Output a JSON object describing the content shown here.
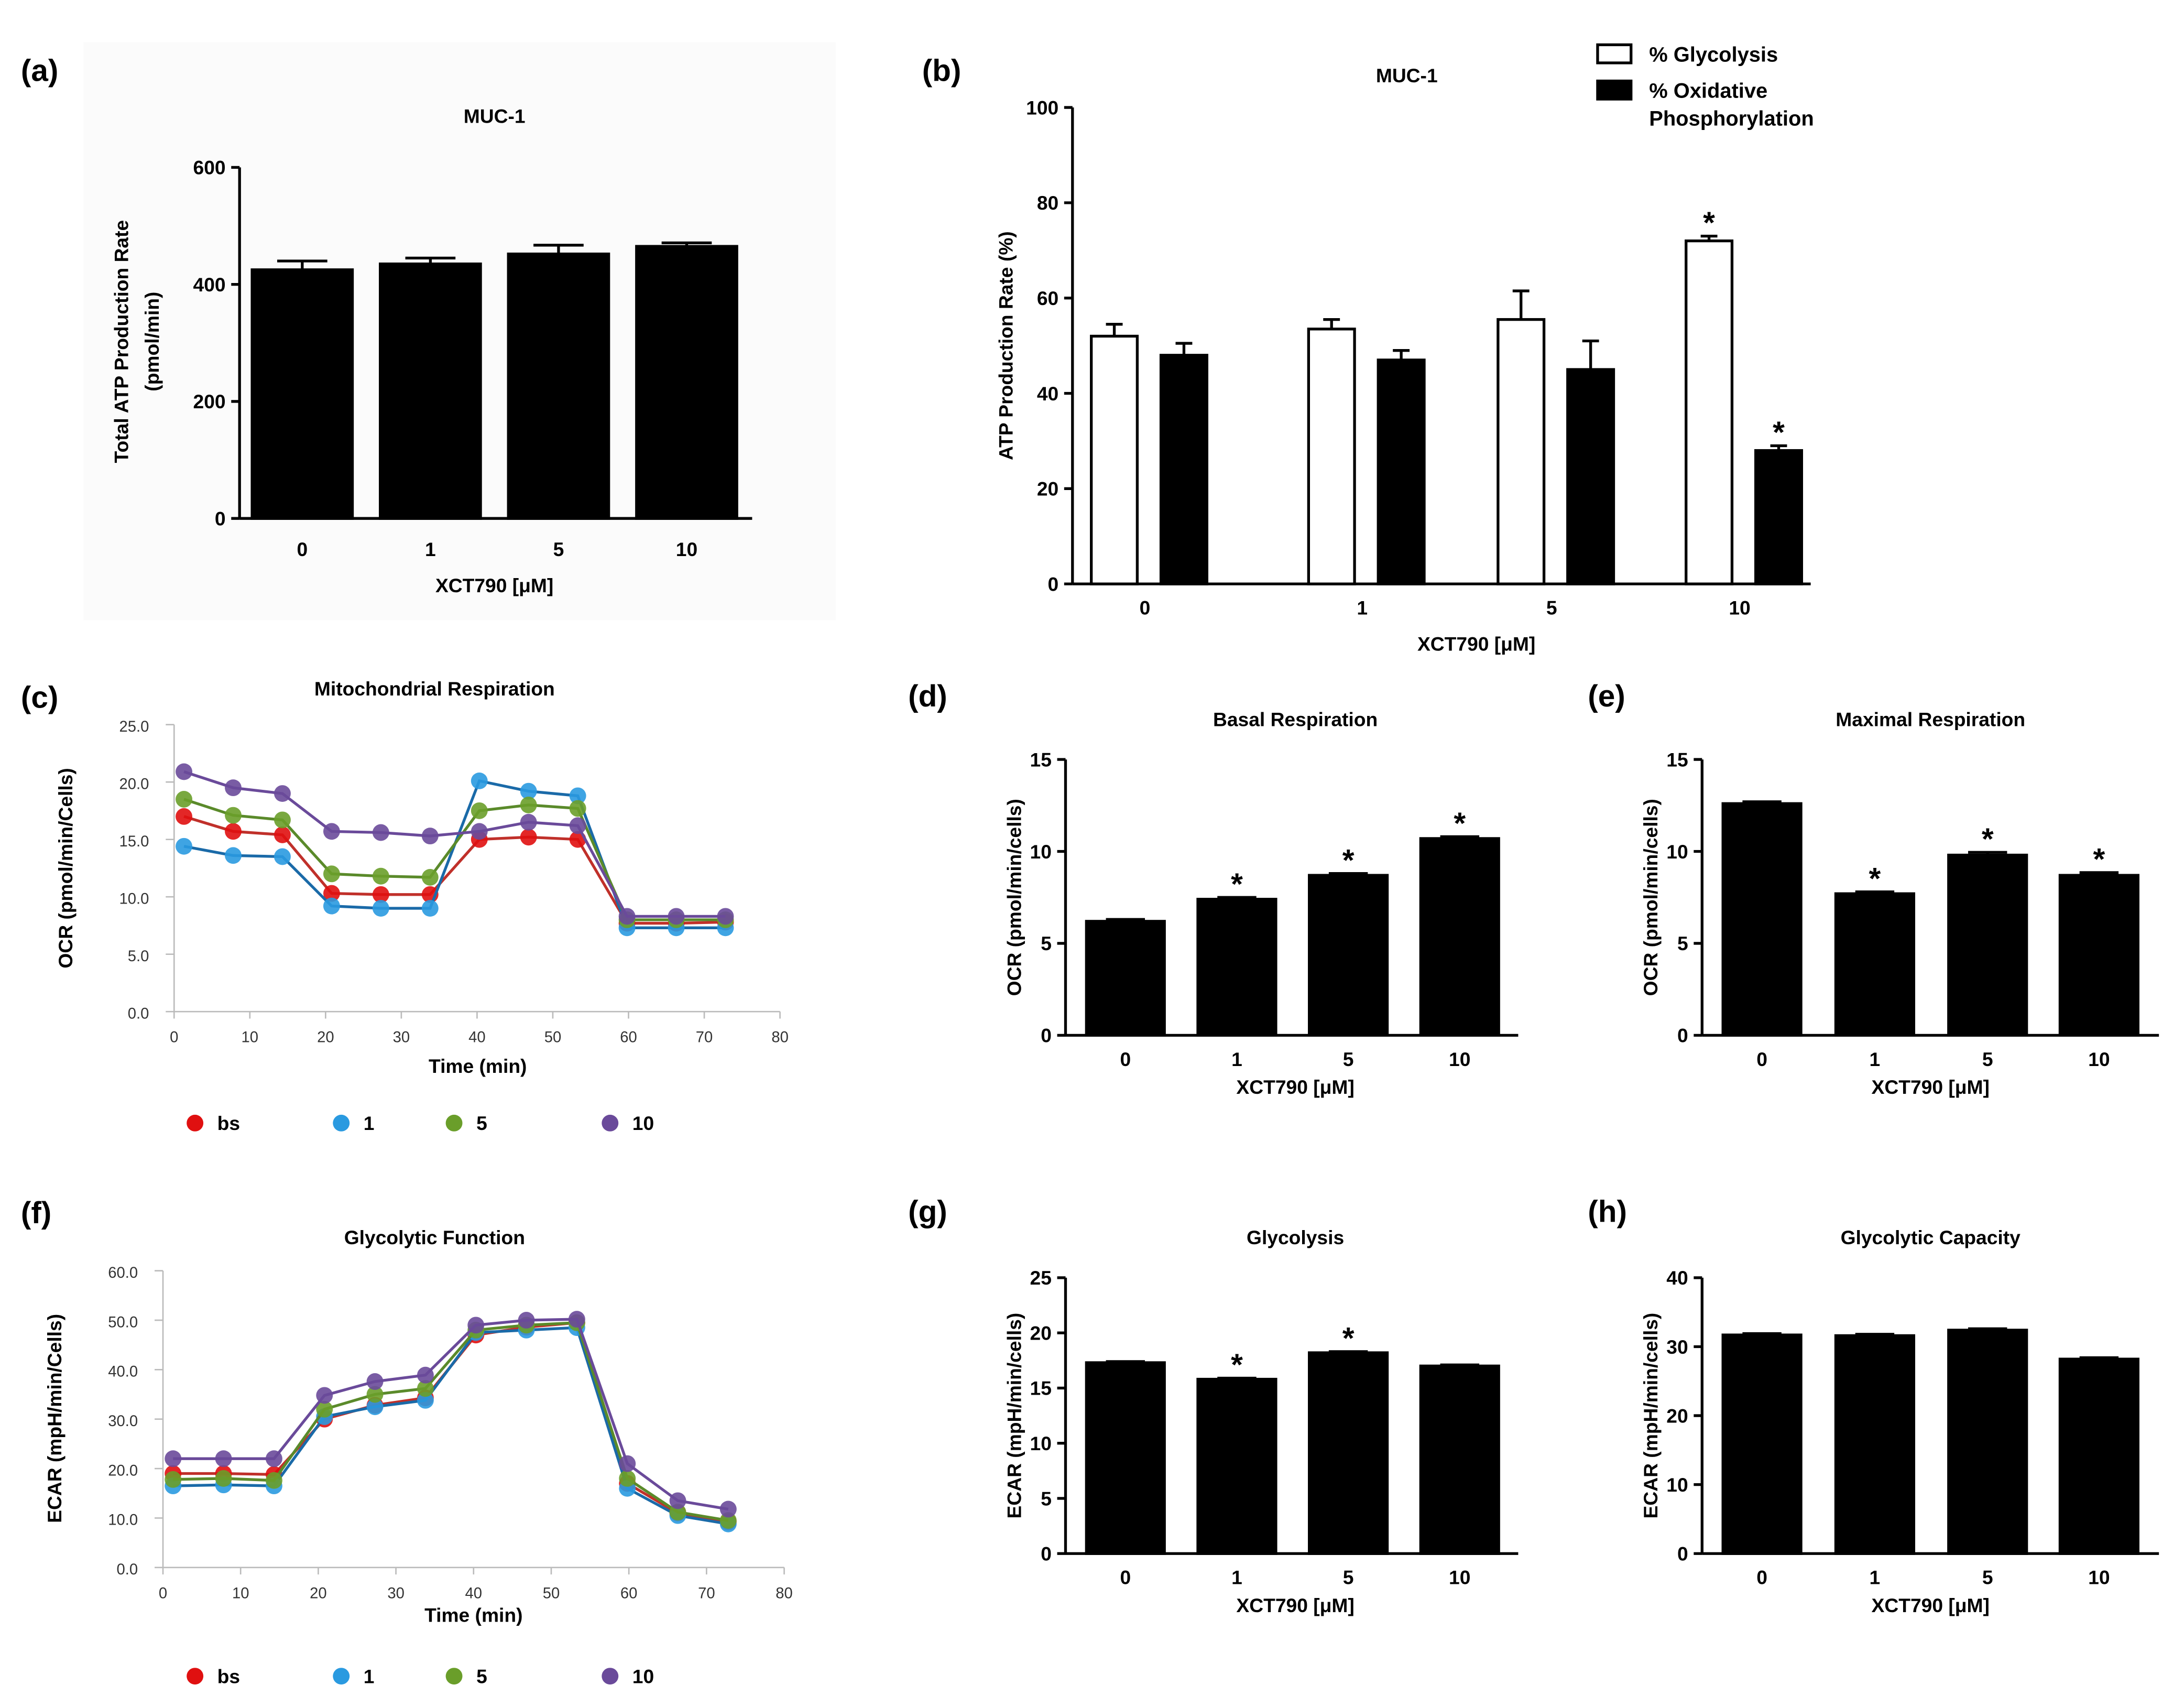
{
  "chart_data": [
    {
      "panel": "(a)",
      "type": "bar",
      "title": "MUC-1",
      "xlabel": "XCT790 [μM]",
      "ylabel": [
        "Total ATP Production Rate",
        "(pmol/min)"
      ],
      "categories": [
        "0",
        "1",
        "5",
        "10"
      ],
      "values": [
        425,
        435,
        452,
        465
      ],
      "errors": [
        15,
        10,
        15,
        6
      ],
      "ylim": [
        0,
        600
      ],
      "yticks": [
        "0",
        "200",
        "400",
        "600"
      ],
      "stars": [
        false,
        false,
        false,
        false
      ]
    },
    {
      "panel": "(b)",
      "type": "bar",
      "title": "MUC-1",
      "xlabel": "XCT790 [μM]",
      "ylabel": [
        "ATP Production Rate (%)"
      ],
      "categories": [
        "0",
        "1",
        "5",
        "10"
      ],
      "ylim": [
        0,
        100
      ],
      "yticks": [
        "0",
        "20",
        "40",
        "60",
        "80",
        "100"
      ],
      "series": [
        {
          "name": "% Glycolysis",
          "legend": [
            "% Glycolysis"
          ],
          "color": "#ffffff",
          "values": [
            52,
            53.5,
            55.5,
            72
          ],
          "errors": [
            2.5,
            2,
            6,
            1
          ],
          "stars": [
            false,
            false,
            false,
            true
          ]
        },
        {
          "name": "% Oxidative Phosphorylation",
          "legend": [
            "% Oxidative",
            "Phosphorylation"
          ],
          "color": "#000000",
          "values": [
            48,
            47,
            45,
            28
          ],
          "errors": [
            2.5,
            2,
            6,
            1
          ],
          "stars": [
            false,
            false,
            false,
            true
          ]
        }
      ],
      "legend_position": "top-right"
    },
    {
      "panel": "(c)",
      "type": "line",
      "title": "Mitochondrial Respiration",
      "xlabel": "Time (min)",
      "ylabel": [
        "OCR (pmol/min/Cells)"
      ],
      "xlim": [
        0,
        80
      ],
      "xticks": [
        "0",
        "10",
        "20",
        "30",
        "40",
        "50",
        "60",
        "70",
        "80"
      ],
      "ylim": [
        0,
        25
      ],
      "yticks": [
        "0.0",
        "5.0",
        "10.0",
        "15.0",
        "20.0",
        "25.0"
      ],
      "x": [
        1.3,
        7.8,
        14.3,
        20.8,
        27.3,
        33.8,
        40.3,
        46.8,
        53.3,
        59.8,
        66.3,
        72.8
      ],
      "series": [
        {
          "name": "bs",
          "color": "#e01010",
          "line": "#c0302a",
          "values": [
            17,
            15.7,
            15.4,
            10.3,
            10.2,
            10.2,
            15,
            15.2,
            15,
            7.7,
            7.7,
            7.8
          ]
        },
        {
          "name": "1",
          "color": "#2a9ae0",
          "line": "#1a6aa8",
          "values": [
            14.4,
            13.6,
            13.5,
            9.2,
            9,
            9,
            20.1,
            19.2,
            18.8,
            7.3,
            7.3,
            7.3
          ]
        },
        {
          "name": "5",
          "color": "#6a9e2a",
          "line": "#5a8a2a",
          "values": [
            18.5,
            17.1,
            16.7,
            12,
            11.8,
            11.7,
            17.5,
            18,
            17.7,
            8,
            8,
            8
          ]
        },
        {
          "name": "10",
          "color": "#6a4a9a",
          "line": "#6a4a9a",
          "values": [
            20.9,
            19.5,
            19,
            15.7,
            15.6,
            15.3,
            15.7,
            16.5,
            16.2,
            8.3,
            8.3,
            8.3
          ]
        }
      ],
      "legend_position": "bottom"
    },
    {
      "panel": "(d)",
      "type": "bar",
      "title": "Basal Respiration",
      "xlabel": "XCT790 [μM]",
      "ylabel": [
        "OCR (pmol/min/cells)"
      ],
      "categories": [
        "0",
        "1",
        "5",
        "10"
      ],
      "values": [
        6.2,
        7.4,
        8.7,
        10.7
      ],
      "errors": [
        0.1,
        0.1,
        0.1,
        0.1
      ],
      "ylim": [
        0,
        15
      ],
      "yticks": [
        "0",
        "5",
        "10",
        "15"
      ],
      "stars": [
        false,
        true,
        true,
        true
      ]
    },
    {
      "panel": "(e)",
      "type": "bar",
      "title": "Maximal Respiration",
      "xlabel": "XCT790 [μM]",
      "ylabel": [
        "OCR (pmol/min/cells)"
      ],
      "categories": [
        "0",
        "1",
        "5",
        "10"
      ],
      "values": [
        12.6,
        7.7,
        9.8,
        8.7
      ],
      "errors": [
        0.1,
        0.1,
        0.15,
        0.15
      ],
      "ylim": [
        0,
        15
      ],
      "yticks": [
        "0",
        "5",
        "10",
        "15"
      ],
      "stars": [
        false,
        true,
        true,
        true
      ]
    },
    {
      "panel": "(f)",
      "type": "line",
      "title": "Glycolytic Function",
      "xlabel": "Time (min)",
      "ylabel": [
        "ECAR (mpH/min/Cells)"
      ],
      "xlim": [
        0,
        80
      ],
      "xticks": [
        "0",
        "10",
        "20",
        "30",
        "40",
        "50",
        "60",
        "70",
        "80"
      ],
      "ylim": [
        0,
        60
      ],
      "yticks": [
        "0.0",
        "10.0",
        "20.0",
        "30.0",
        "40.0",
        "50.0",
        "60.0"
      ],
      "x": [
        1.3,
        7.8,
        14.3,
        20.8,
        27.3,
        33.8,
        40.3,
        46.8,
        53.3,
        59.8,
        66.3,
        72.8
      ],
      "series": [
        {
          "name": "bs",
          "color": "#e01010",
          "line": "#c0302a",
          "values": [
            19,
            19,
            18.8,
            30,
            32.8,
            34.3,
            47,
            48.6,
            49.5,
            17,
            11,
            9.2
          ]
        },
        {
          "name": "1",
          "color": "#2a9ae0",
          "line": "#1a6aa8",
          "values": [
            16.5,
            16.7,
            16.5,
            30.5,
            32.5,
            33.8,
            47.5,
            48,
            48.5,
            16,
            10.5,
            8.8
          ]
        },
        {
          "name": "5",
          "color": "#6a9e2a",
          "line": "#5a8a2a",
          "values": [
            17.8,
            18,
            17.6,
            32,
            35,
            36.2,
            48,
            49,
            49.5,
            18,
            11.2,
            9.5
          ]
        },
        {
          "name": "10",
          "color": "#6a4a9a",
          "line": "#6a4a9a",
          "values": [
            22,
            22,
            22,
            34.8,
            37.6,
            38.9,
            49,
            50,
            50.2,
            21,
            13.5,
            11.8
          ]
        }
      ],
      "legend_position": "bottom"
    },
    {
      "panel": "(g)",
      "type": "bar",
      "title": "Glycolysis",
      "xlabel": "XCT790 [μM]",
      "ylabel": [
        "ECAR (mpH/min/cells)"
      ],
      "categories": [
        "0",
        "1",
        "5",
        "10"
      ],
      "values": [
        17.3,
        15.8,
        18.2,
        17
      ],
      "errors": [
        0.1,
        0.1,
        0.1,
        0.1
      ],
      "ylim": [
        0,
        25
      ],
      "yticks": [
        "0",
        "5",
        "10",
        "15",
        "20",
        "25"
      ],
      "stars": [
        false,
        true,
        true,
        false
      ]
    },
    {
      "panel": "(h)",
      "type": "bar",
      "title": "Glycolytic Capacity",
      "xlabel": "XCT790 [μM]",
      "ylabel": [
        "ECAR (mpH/min/cells)"
      ],
      "categories": [
        "0",
        "1",
        "5",
        "10"
      ],
      "values": [
        31.7,
        31.6,
        32.4,
        28.2
      ],
      "errors": [
        0.2,
        0.2,
        0.2,
        0.2
      ],
      "ylim": [
        0,
        40
      ],
      "yticks": [
        "0",
        "10",
        "20",
        "30",
        "40"
      ],
      "stars": [
        false,
        false,
        false,
        false
      ]
    }
  ],
  "star_symbol": "*"
}
